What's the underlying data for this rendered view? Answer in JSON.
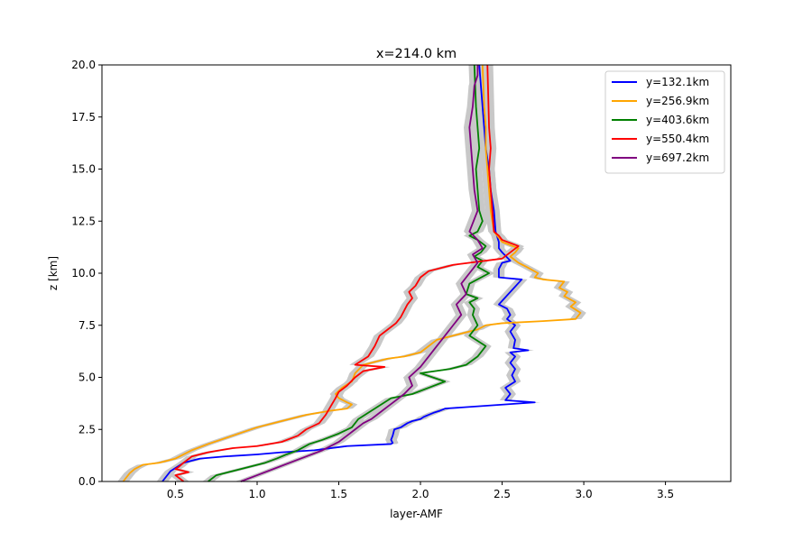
{
  "chart_data": {
    "type": "line",
    "title": "x=214.0 km",
    "xlabel": "layer-AMF",
    "ylabel": "z [km]",
    "xlim": [
      0.05,
      3.9
    ],
    "ylim": [
      0,
      20
    ],
    "xticks": [
      "0.5",
      "1.0",
      "1.5",
      "2.0",
      "2.5",
      "3.0",
      "3.5"
    ],
    "yticks": [
      "0.0",
      "2.5",
      "5.0",
      "7.5",
      "10.0",
      "12.5",
      "15.0",
      "17.5",
      "20.0"
    ],
    "grid": false,
    "legend_position": "top-right",
    "uncertainty_band_color": "#c8c8c8",
    "series": [
      {
        "name": "y=132.1km",
        "color": "#0000ff",
        "x": [
          0.42,
          0.47,
          0.55,
          0.65,
          0.8,
          1.0,
          1.15,
          1.35,
          1.55,
          1.82,
          1.83,
          1.82,
          1.83,
          1.84,
          1.88,
          1.92,
          1.95,
          2.0,
          2.02,
          2.05,
          2.08,
          2.12,
          2.15,
          2.7,
          2.52,
          2.55,
          2.52,
          2.58,
          2.56,
          2.58,
          2.55,
          2.58,
          2.55,
          2.66,
          2.57,
          2.58,
          2.55,
          2.58,
          2.53,
          2.55,
          2.53,
          2.48,
          2.62,
          2.48,
          2.48,
          2.5,
          2.55,
          2.5,
          2.48,
          2.48,
          2.46,
          2.45,
          2.43,
          2.42,
          2.4,
          2.39,
          2.38,
          2.37,
          2.36
        ],
        "y": [
          0.0,
          0.5,
          0.9,
          1.1,
          1.2,
          1.3,
          1.4,
          1.5,
          1.7,
          1.8,
          1.85,
          2.0,
          2.2,
          2.5,
          2.6,
          2.8,
          2.9,
          3.0,
          3.1,
          3.2,
          3.3,
          3.4,
          3.5,
          3.8,
          3.9,
          4.2,
          4.5,
          4.8,
          5.1,
          5.4,
          5.7,
          6.0,
          6.2,
          6.3,
          6.4,
          6.8,
          7.2,
          7.5,
          7.8,
          8.0,
          8.3,
          8.5,
          9.7,
          9.8,
          10.2,
          10.5,
          10.6,
          11.0,
          11.2,
          11.5,
          12.0,
          13.0,
          14.0,
          15.0,
          16.0,
          17.0,
          18.0,
          19.0,
          20.0
        ]
      },
      {
        "name": "y=256.9km",
        "color": "#ffa500",
        "x": [
          0.18,
          0.2,
          0.22,
          0.25,
          0.3,
          0.4,
          0.5,
          0.6,
          0.7,
          0.85,
          1.0,
          1.15,
          1.3,
          1.45,
          1.55,
          1.58,
          1.55,
          1.5,
          1.48,
          1.52,
          1.58,
          1.6,
          1.65,
          1.8,
          1.9,
          2.0,
          2.05,
          2.1,
          2.2,
          2.3,
          2.35,
          2.4,
          2.5,
          2.75,
          2.95,
          2.98,
          2.92,
          2.95,
          2.88,
          2.9,
          2.85,
          2.88,
          2.75,
          2.7,
          2.72,
          2.65,
          2.6,
          2.55,
          2.58,
          2.6,
          2.5,
          2.45,
          2.43,
          2.42,
          2.41,
          2.4,
          2.4,
          2.39,
          2.38
        ],
        "y": [
          0.0,
          0.2,
          0.4,
          0.6,
          0.8,
          0.9,
          1.1,
          1.5,
          1.8,
          2.2,
          2.6,
          2.9,
          3.2,
          3.4,
          3.5,
          3.7,
          3.8,
          4.0,
          4.2,
          4.5,
          4.8,
          5.2,
          5.6,
          5.9,
          6.0,
          6.2,
          6.5,
          6.8,
          7.0,
          7.2,
          7.3,
          7.5,
          7.6,
          7.7,
          7.8,
          8.1,
          8.4,
          8.6,
          8.9,
          9.1,
          9.3,
          9.6,
          9.7,
          9.8,
          10.0,
          10.3,
          10.5,
          10.8,
          11.0,
          11.2,
          11.5,
          12.0,
          13.0,
          14.0,
          15.0,
          16.0,
          17.0,
          18.0,
          20.0
        ]
      },
      {
        "name": "y=403.6km",
        "color": "#008000",
        "x": [
          0.7,
          0.75,
          0.85,
          0.95,
          1.05,
          1.12,
          1.18,
          1.25,
          1.32,
          1.4,
          1.5,
          1.58,
          1.62,
          1.7,
          1.82,
          1.95,
          2.05,
          2.15,
          2.0,
          2.18,
          2.28,
          2.35,
          2.4,
          2.3,
          2.35,
          2.32,
          2.33,
          2.3,
          2.35,
          2.28,
          2.3,
          2.42,
          2.35,
          2.38,
          2.33,
          2.37,
          2.4,
          2.35,
          2.3,
          2.35,
          2.38,
          2.36,
          2.35,
          2.34,
          2.36,
          2.35,
          2.34,
          2.33
        ],
        "y": [
          0.0,
          0.3,
          0.5,
          0.7,
          0.9,
          1.1,
          1.3,
          1.5,
          1.8,
          2.0,
          2.3,
          2.6,
          3.0,
          3.4,
          4.0,
          4.2,
          4.5,
          4.8,
          5.2,
          5.4,
          5.6,
          6.0,
          6.5,
          7.0,
          7.5,
          8.0,
          8.3,
          8.6,
          8.8,
          9.0,
          9.5,
          10.0,
          10.3,
          10.6,
          10.8,
          11.0,
          11.3,
          11.6,
          11.8,
          12.0,
          12.5,
          13.0,
          14.0,
          15.0,
          16.0,
          17.0,
          18.0,
          20.0
        ]
      },
      {
        "name": "y=550.4km",
        "color": "#ff0000",
        "x": [
          0.55,
          0.5,
          0.58,
          0.5,
          0.52,
          0.55,
          0.6,
          0.7,
          0.85,
          1.0,
          1.15,
          1.25,
          1.3,
          1.38,
          1.42,
          1.45,
          1.48,
          1.5,
          1.55,
          1.6,
          1.65,
          1.78,
          1.6,
          1.68,
          1.72,
          1.75,
          1.8,
          1.85,
          1.88,
          1.9,
          1.92,
          1.95,
          1.93,
          1.97,
          2.0,
          2.05,
          2.2,
          2.5,
          2.6,
          2.5,
          2.48,
          2.45,
          2.44,
          2.43,
          2.42,
          2.43,
          2.42,
          2.41
        ],
        "y": [
          0.0,
          0.3,
          0.45,
          0.6,
          0.7,
          0.9,
          1.2,
          1.4,
          1.6,
          1.7,
          1.9,
          2.2,
          2.5,
          2.8,
          3.2,
          3.6,
          4.0,
          4.3,
          4.6,
          5.0,
          5.3,
          5.5,
          5.6,
          6.0,
          6.5,
          7.0,
          7.3,
          7.6,
          7.9,
          8.2,
          8.5,
          8.8,
          9.1,
          9.4,
          9.8,
          10.1,
          10.4,
          10.7,
          11.3,
          11.6,
          11.8,
          12.0,
          13.0,
          14.0,
          15.0,
          16.0,
          17.0,
          20.0
        ]
      },
      {
        "name": "y=697.2km",
        "color": "#800080",
        "x": [
          0.9,
          1.0,
          1.1,
          1.2,
          1.3,
          1.4,
          1.5,
          1.55,
          1.6,
          1.65,
          1.7,
          1.75,
          1.8,
          1.85,
          1.9,
          1.95,
          1.93,
          2.0,
          2.05,
          2.1,
          2.15,
          2.2,
          2.25,
          2.22,
          2.28,
          2.25,
          2.3,
          2.35,
          2.32,
          2.38,
          2.35,
          2.3,
          2.35,
          2.33,
          2.32,
          2.31,
          2.3,
          2.32,
          2.33,
          2.35,
          2.35
        ],
        "y": [
          0.0,
          0.3,
          0.6,
          0.9,
          1.2,
          1.5,
          1.9,
          2.2,
          2.5,
          2.8,
          3.0,
          3.3,
          3.6,
          3.9,
          4.2,
          4.6,
          5.0,
          5.5,
          6.0,
          6.5,
          7.0,
          7.5,
          8.0,
          8.5,
          9.0,
          9.5,
          10.0,
          10.5,
          10.9,
          11.2,
          11.6,
          12.0,
          13.0,
          14.0,
          15.0,
          16.0,
          17.0,
          18.0,
          19.0,
          19.5,
          20.0
        ]
      }
    ]
  }
}
